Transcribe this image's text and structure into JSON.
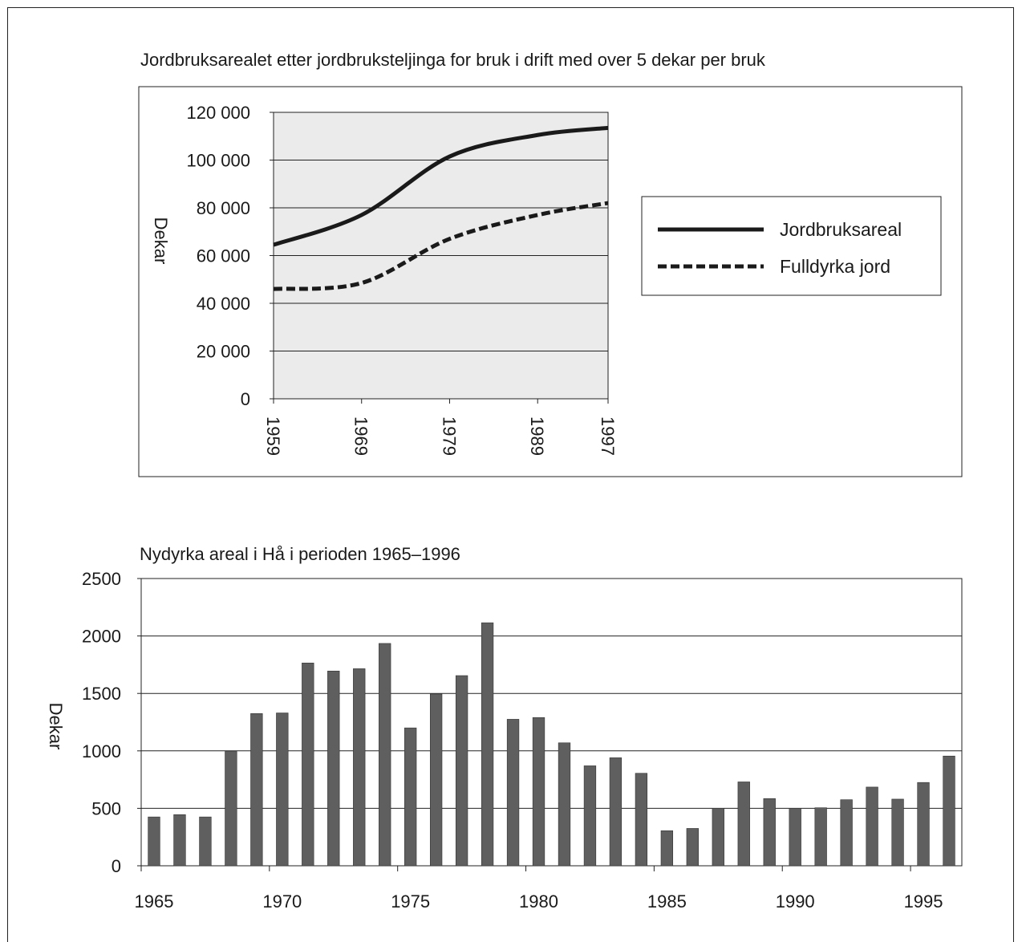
{
  "chart_data": [
    {
      "type": "line",
      "title": "Jordbruksarealet etter jordbruksteljinga for bruk i drift med over 5 dekar per bruk",
      "xlabel": "",
      "ylabel": "Dekar",
      "x": [
        1959,
        1969,
        1979,
        1989,
        1997
      ],
      "xticks": [
        "1959",
        "1969",
        "1979",
        "1989",
        "1997"
      ],
      "yticks": [
        "0",
        "20 000",
        "40 000",
        "60 000",
        "80 000",
        "100 000",
        "120 000"
      ],
      "ylim": [
        0,
        120000
      ],
      "grid": true,
      "legend": "right",
      "series": [
        {
          "name": "Jordbruksareal",
          "style": "solid",
          "values": [
            64500,
            77000,
            101500,
            110500,
            113500
          ]
        },
        {
          "name": "Fulldyrka jord",
          "style": "dashed",
          "values": [
            46000,
            48500,
            67000,
            77000,
            82000
          ]
        }
      ]
    },
    {
      "type": "bar",
      "title": "Nydyrka areal i Hå i perioden 1965–1996",
      "xlabel": "",
      "ylabel": "Dekar",
      "categories": [
        1965,
        1966,
        1967,
        1968,
        1969,
        1970,
        1971,
        1972,
        1973,
        1974,
        1975,
        1976,
        1977,
        1978,
        1979,
        1980,
        1981,
        1982,
        1983,
        1984,
        1985,
        1986,
        1987,
        1988,
        1989,
        1990,
        1991,
        1992,
        1993,
        1994,
        1995,
        1996
      ],
      "values": [
        425,
        445,
        425,
        995,
        1325,
        1330,
        1765,
        1695,
        1715,
        1935,
        1200,
        1495,
        1655,
        2115,
        1275,
        1290,
        1070,
        870,
        940,
        805,
        305,
        325,
        500,
        730,
        585,
        500,
        505,
        575,
        685,
        580,
        725,
        955
      ],
      "xticks": [
        "1965",
        "1970",
        "1975",
        "1980",
        "1985",
        "1990",
        "1995"
      ],
      "yticks": [
        "0",
        "500",
        "1000",
        "1500",
        "2000",
        "2500"
      ],
      "ylim": [
        0,
        2500
      ],
      "grid": true
    }
  ],
  "colors": {
    "line": "#1a1a1a",
    "plot_bg": "#ebebeb",
    "bar": "#5f5f5f",
    "grid": "#222222"
  }
}
